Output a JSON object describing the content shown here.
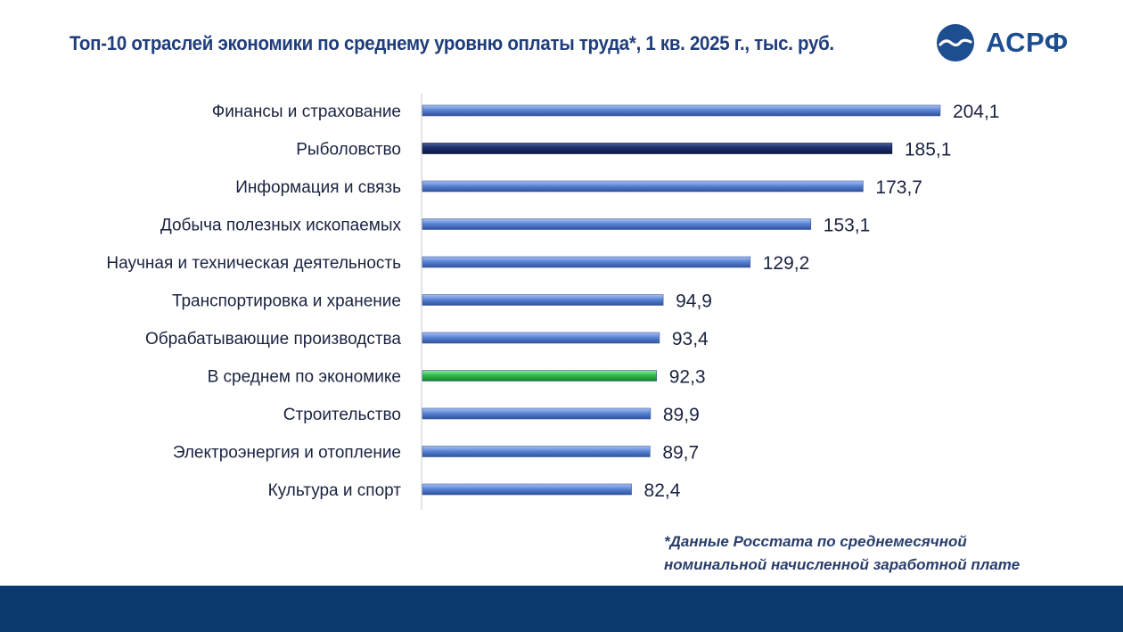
{
  "title": "Топ-10 отраслей экономики по среднему уровню оплаты труда*, 1 кв. 2025 г., тыс. руб.",
  "logo": {
    "text": "АСРФ",
    "icon": "wave-circle-icon"
  },
  "footnote": {
    "line1": "*Данные Росстата по среднемесячной",
    "line2": "номинальной начисленной заработной плате"
  },
  "colors": {
    "default_bar": "#5b86d6",
    "highlight_bar": "#1a2f6b",
    "average_bar": "#2fbf47",
    "footer": "#0b3a6e",
    "title": "#1f3d7a"
  },
  "chart_data": {
    "type": "bar",
    "orientation": "horizontal",
    "title": "Топ-10 отраслей экономики по среднему уровню оплаты труда*, 1 кв. 2025 г., тыс. руб.",
    "xlabel": "",
    "ylabel": "",
    "grid": false,
    "categories": [
      "Финансы и страхование",
      "Рыболовство",
      "Информация и связь",
      "Добыча полезных ископаемых",
      "Научная и техническая деятельность",
      "Транспортировка и хранение",
      "Обрабатывающие производства",
      "В среднем по экономике",
      "Строительство",
      "Электроэнергия и отопление",
      "Культура и спорт"
    ],
    "values": [
      204.1,
      185.1,
      173.7,
      153.1,
      129.2,
      94.9,
      93.4,
      92.3,
      89.9,
      89.7,
      82.4
    ],
    "value_labels": [
      "204,1",
      "185,1",
      "173,7",
      "153,1",
      "129,2",
      "94,9",
      "93,4",
      "92,3",
      "89,9",
      "89,7",
      "82,4"
    ],
    "bar_styles": [
      "default",
      "highlight",
      "default",
      "default",
      "default",
      "default",
      "default",
      "average",
      "default",
      "default",
      "default"
    ],
    "xlim": [
      0,
      215
    ]
  }
}
